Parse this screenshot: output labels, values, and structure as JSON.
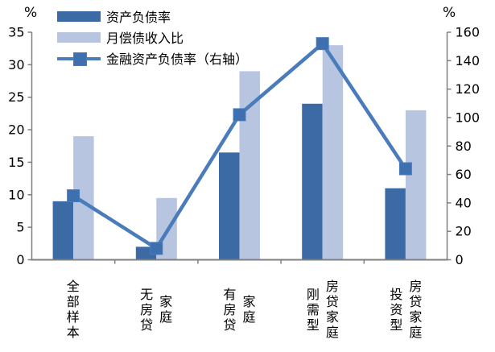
{
  "chart_data": {
    "type": "bar",
    "note": "grouped bar chart with secondary-axis line series",
    "categories": [
      "全部样本",
      "无房贷家庭",
      "有房贷家庭",
      "刚需型房贷家庭",
      "投资型房贷家庭"
    ],
    "category_lines": [
      [
        "全部样本"
      ],
      [
        "无房贷",
        "家庭"
      ],
      [
        "有房贷",
        "家庭"
      ],
      [
        "刚需型",
        "房贷家庭"
      ],
      [
        "投资型",
        "房贷家庭"
      ]
    ],
    "series": [
      {
        "name": "资产负债率",
        "type": "bar",
        "axis": "left",
        "color": "#3c6aa5",
        "values": [
          9,
          2,
          16.5,
          24,
          11
        ]
      },
      {
        "name": "月偿债收入比",
        "type": "bar",
        "axis": "left",
        "color": "#b7c5e0",
        "values": [
          19,
          9.5,
          29,
          33,
          23
        ]
      },
      {
        "name": "金融资产负债率（右轴）",
        "type": "line",
        "axis": "right",
        "color": "#4a7cbb",
        "marker_color": "#3e70b0",
        "values": [
          45,
          8,
          102,
          152,
          64
        ]
      }
    ],
    "left_axis": {
      "label": "%",
      "min": 0,
      "max": 35,
      "step": 5
    },
    "right_axis": {
      "label": "%",
      "min": 0,
      "max": 160,
      "step": 20
    },
    "grid": false,
    "legend_position": "top-left",
    "axis_color": "#808080",
    "title": ""
  }
}
